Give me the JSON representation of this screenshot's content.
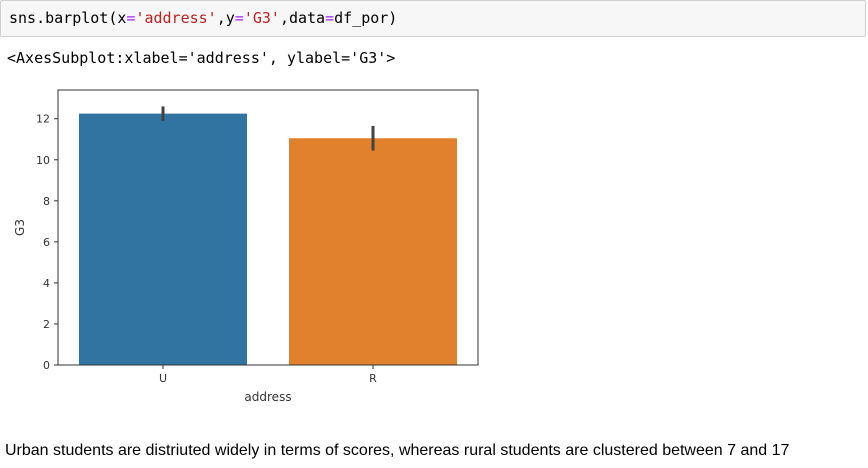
{
  "code_cell": {
    "fn": "sns.barplot(",
    "arg_x_name": "x",
    "eq1": "=",
    "arg_x_value": "'address'",
    "comma1": ",",
    "arg_y_name": "y",
    "eq2": "=",
    "arg_y_value": "'G3'",
    "comma2": ",",
    "arg_data_name": "data",
    "eq3": "=",
    "arg_data_value": "df_por)"
  },
  "output": {
    "repr": "<AxesSubplot:xlabel='address', ylabel='G3'>"
  },
  "chart_data": {
    "type": "bar",
    "categories": [
      "U",
      "R"
    ],
    "values": [
      12.25,
      11.05
    ],
    "error_bars": [
      [
        11.9,
        12.6
      ],
      [
        10.45,
        11.65
      ]
    ],
    "colors": [
      "#3274a1",
      "#e1812c"
    ],
    "xlabel": "address",
    "ylabel": "G3",
    "ylim": [
      0,
      13.4
    ],
    "yticks": [
      0,
      2,
      4,
      6,
      8,
      10,
      12
    ],
    "grid": false
  },
  "markdown": {
    "text": "Urban students are distriuted widely in terms of scores, whereas rural students are clustered between 7 and 17"
  }
}
